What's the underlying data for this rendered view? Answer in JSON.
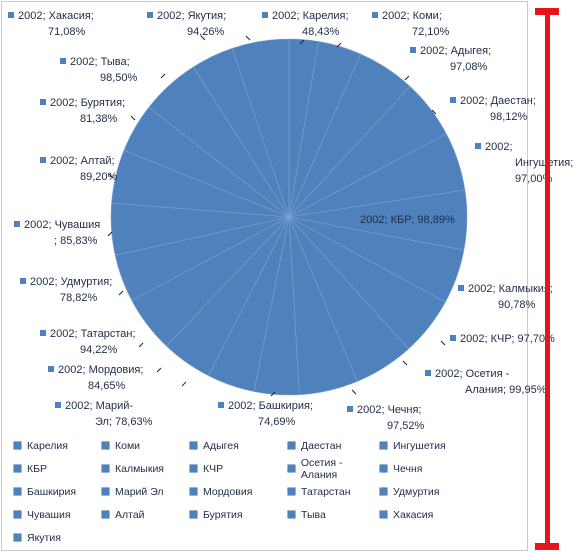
{
  "chart_data": {
    "type": "pie",
    "series_label": "2002",
    "categories": [
      "Карелия",
      "Коми",
      "Адыгея",
      "Даестан",
      "Ингушетия",
      "КБР",
      "Калмыкия",
      "КЧР",
      "Осетия - Алания",
      "Чечня",
      "Башкирия",
      "Марий Эл",
      "Мордовия",
      "Татарстан",
      "Удмуртия",
      "Чувашия",
      "Алтай",
      "Бурятия",
      "Тыва",
      "Хакасия",
      "Якутия"
    ],
    "values": [
      48.43,
      72.1,
      97.08,
      98.12,
      97.0,
      98.89,
      90.78,
      97.7,
      99.95,
      97.52,
      74.69,
      78.63,
      84.65,
      94.22,
      78.82,
      85.83,
      89.2,
      81.38,
      98.5,
      71.08,
      94.26
    ],
    "data_labels": [
      [
        "2002; Карелия;",
        "48,43%"
      ],
      [
        "2002; Коми;",
        "72,10%"
      ],
      [
        "2002; Адыгея;",
        "97,08%"
      ],
      [
        "2002; Даестан;",
        "98,12%"
      ],
      [
        "2002;",
        "Ингушетия;",
        "97,00%"
      ],
      [
        "2002; КБР; 98,89%"
      ],
      [
        "2002; Калмыкия;",
        "90,78%"
      ],
      [
        "2002; КЧР; 97,70%"
      ],
      [
        "2002; Осетия -",
        "Алания; 99,95%"
      ],
      [
        "2002; Чечня;",
        "97,52%"
      ],
      [
        "2002; Башкирия;",
        "74,69%"
      ],
      [
        "2002; Марий-",
        "Эл; 78,63%"
      ],
      [
        "2002; Мордовия;",
        "84,65%"
      ],
      [
        "2002; Татарстан;",
        "94,22%"
      ],
      [
        "2002; Удмуртия;",
        "78,82%"
      ],
      [
        "2002; Чувашия",
        "; 85,83%"
      ],
      [
        "2002; Алтай;",
        "89,20%"
      ],
      [
        "2002; Бурятия;",
        "81,38%"
      ],
      [
        "2002; Тыва;",
        "98,50%"
      ],
      [
        "2002; Хакасия;",
        "71,08%"
      ],
      [
        "2002; Якутия;",
        "94,26%"
      ]
    ],
    "legend_position": "bottom",
    "legend": [
      "Карелия",
      "Коми",
      "Адыгея",
      "Даестан",
      "Ингушетия",
      "КБР",
      "Калмыкия",
      "КЧР",
      "Осетия - Алания",
      "Чечня",
      "Башкирия",
      "Марий Эл",
      "Мордовия",
      "Татарстан",
      "Удмуртия",
      "Чувашия",
      "Алтай",
      "Бурятия",
      "Тыва",
      "Хакасия",
      "Якутия"
    ],
    "colors": {
      "slice": "#4f81bd",
      "accent_bar": "#e8141c"
    }
  }
}
